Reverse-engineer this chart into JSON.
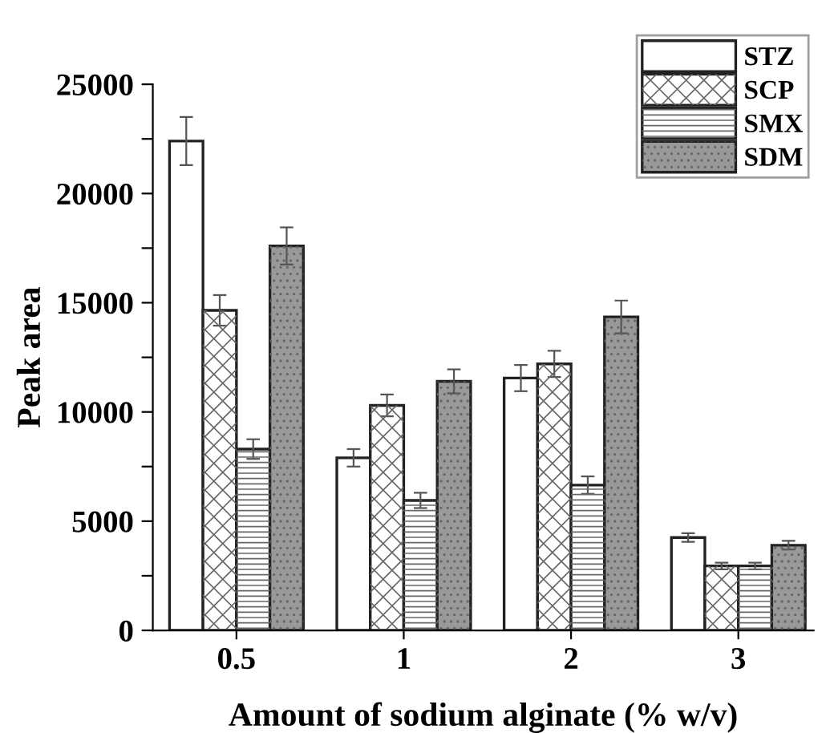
{
  "chart_data": {
    "type": "bar",
    "xlabel": "Amount of sodium alginate (% w/v)",
    "ylabel": "Peak area",
    "categories": [
      "0.5",
      "1",
      "2",
      "3"
    ],
    "series": [
      {
        "name": "STZ",
        "color": "#ffffff",
        "values": [
          22400,
          7900,
          11550,
          4250
        ],
        "errors": [
          1100,
          400,
          600,
          200
        ]
      },
      {
        "name": "SCP",
        "color": "#ffffff",
        "values": [
          14650,
          10300,
          12200,
          2950
        ],
        "errors": [
          700,
          500,
          600,
          150
        ]
      },
      {
        "name": "SMX",
        "color": "#ffffff",
        "values": [
          8300,
          5950,
          6650,
          2950
        ],
        "errors": [
          450,
          350,
          400,
          150
        ]
      },
      {
        "name": "SDM",
        "color": "#999999",
        "values": [
          17600,
          11400,
          14350,
          3900
        ],
        "errors": [
          850,
          550,
          750,
          200
        ]
      }
    ],
    "ylim": [
      0,
      25000
    ],
    "yticks": [
      0,
      {
        "value": 2500,
        "label": null
      },
      5000,
      {
        "value": 7500,
        "label": null
      },
      10000,
      {
        "value": 12500,
        "label": null
      },
      15000,
      {
        "value": 17500,
        "label": null
      },
      20000,
      {
        "value": 22500,
        "label": null
      },
      25000
    ],
    "grid": false,
    "legend": "top right"
  }
}
